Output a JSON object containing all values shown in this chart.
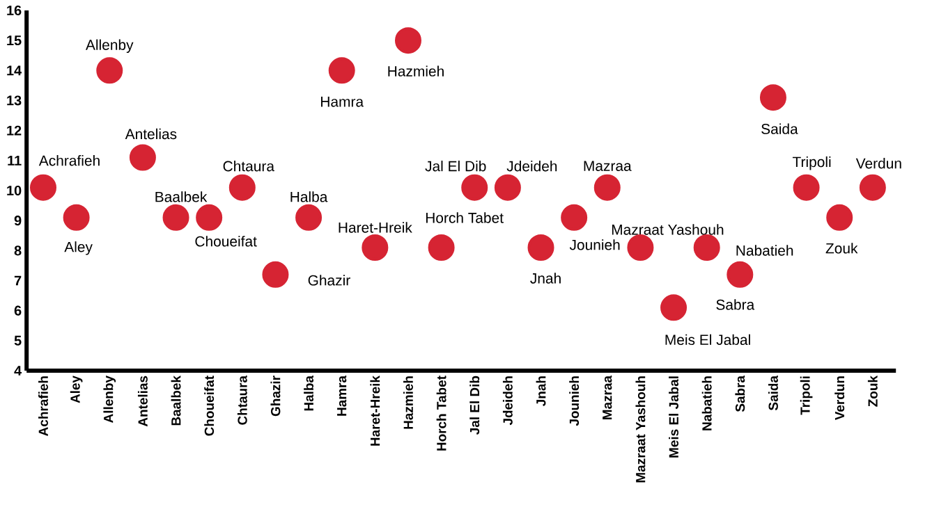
{
  "chart_data": {
    "type": "scatter",
    "categories": [
      "Achrafieh",
      "Aley",
      "Allenby",
      "Antelias",
      "Baalbek",
      "Choueifat",
      "Chtaura",
      "Ghazir",
      "Halba",
      "Hamra",
      "Haret-Hreik",
      "Hazmieh",
      "Horch Tabet",
      "Jal El Dib",
      "Jdeideh",
      "Jnah",
      "Jounieh",
      "Mazraa",
      "Mazraat Yashouh",
      "Meis El Jabal",
      "Nabatieh",
      "Sabra",
      "Saida",
      "Tripoli",
      "Verdun",
      "Zouk"
    ],
    "series": [
      {
        "color": "#d62433",
        "values": [
          10.1,
          9.1,
          14,
          11.1,
          9.1,
          9.1,
          10.1,
          7.2,
          9.1,
          14,
          8.1,
          15,
          8.1,
          10.1,
          10.1,
          8.1,
          9.1,
          10.1,
          8.1,
          6.1,
          8.1,
          7.2,
          13.1,
          10.1,
          9.1,
          10.1
        ]
      }
    ],
    "ylim": [
      4,
      16
    ],
    "yticks": [
      4,
      5,
      6,
      7,
      8,
      9,
      10,
      11,
      12,
      13,
      14,
      15,
      16
    ],
    "grid": false,
    "marker": "circle",
    "annotations": [
      {
        "text": "Achrafieh",
        "x": "Achrafieh",
        "y": 10.1
      },
      {
        "text": "Aley",
        "x": "Aley",
        "y": 9.1
      },
      {
        "text": "Allenby",
        "x": "Allenby",
        "y": 14
      },
      {
        "text": "Antelias",
        "x": "Antelias",
        "y": 11.1
      },
      {
        "text": "Baalbek",
        "x": "Baalbek",
        "y": 9.1
      },
      {
        "text": "Choueifat",
        "x": "Choueifat",
        "y": 9.1
      },
      {
        "text": "Chtaura",
        "x": "Chtaura",
        "y": 10.1
      },
      {
        "text": "Ghazir",
        "x": "Ghazir",
        "y": 7.2
      },
      {
        "text": "Halba",
        "x": "Halba",
        "y": 9.1
      },
      {
        "text": "Hamra",
        "x": "Hamra",
        "y": 14
      },
      {
        "text": "Haret-Hreik",
        "x": "Haret-Hreik",
        "y": 8.1
      },
      {
        "text": "Hazmieh",
        "x": "Hazmieh",
        "y": 15
      },
      {
        "text": "Horch Tabet",
        "x": "Horch Tabet",
        "y": 8.1
      },
      {
        "text": "Jal El Dib",
        "x": "Jal El Dib",
        "y": 10.1
      },
      {
        "text": "Jdeideh",
        "x": "Jdeideh",
        "y": 10.1
      },
      {
        "text": "Jnah",
        "x": "Jnah",
        "y": 8.1
      },
      {
        "text": "Jounieh",
        "x": "Jounieh",
        "y": 9.1
      },
      {
        "text": "Mazraa",
        "x": "Mazraa",
        "y": 10.1
      },
      {
        "text": "Mazraat Yashouh",
        "x": "Mazraat Yashouh",
        "y": 8.1
      },
      {
        "text": "Meis El Jabal",
        "x": "Meis El Jabal",
        "y": 6.1
      },
      {
        "text": "Nabatieh",
        "x": "Nabatieh",
        "y": 8.1
      },
      {
        "text": "Sabra",
        "x": "Sabra",
        "y": 7.2
      },
      {
        "text": "Saida",
        "x": "Saida",
        "y": 13.1
      },
      {
        "text": "Tripoli",
        "x": "Tripoli",
        "y": 10.1
      },
      {
        "text": "Verdun",
        "x": "Zouk",
        "y": 10.1
      },
      {
        "text": "Zouk",
        "x": "Verdun",
        "y": 9.1
      }
    ]
  }
}
